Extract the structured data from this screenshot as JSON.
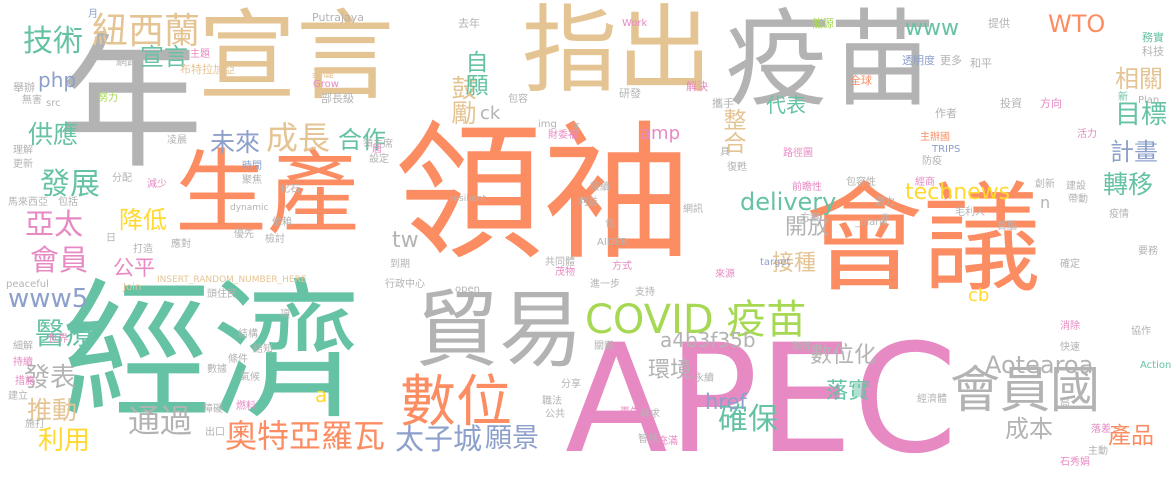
{
  "palette": {
    "teal": "#66c2a5",
    "orange": "#fc8d62",
    "pink": "#e78ac3",
    "lime": "#a6d854",
    "yellow": "#ffd92f",
    "tan": "#e5c494",
    "gray": "#b3b3b3",
    "blue": "#8da0cb"
  },
  "words": [
    {
      "text": "領袖",
      "color": "#fc8d62"
    },
    {
      "text": "經濟",
      "color": "#66c2a5"
    },
    {
      "text": "會議",
      "color": "#fc8d62"
    },
    {
      "text": "APEC",
      "color": "#e78ac3"
    },
    {
      "text": "疫苗",
      "color": "#b3b3b3"
    },
    {
      "text": "宣言",
      "color": "#e5c494"
    },
    {
      "text": "指出",
      "color": "#e5c494"
    },
    {
      "text": "年",
      "color": "#b3b3b3"
    },
    {
      "text": "生產",
      "color": "#fc8d62"
    },
    {
      "text": "貿易",
      "color": "#b3b3b3"
    },
    {
      "text": "數位",
      "color": "#fc8d62"
    },
    {
      "text": "會員國",
      "color": "#b3b3b3"
    },
    {
      "text": "COVID 疫苗",
      "color": "#a6d854"
    },
    {
      "text": "紐西蘭",
      "color": "#e5c494"
    },
    {
      "text": "技術",
      "color": "#66c2a5"
    },
    {
      "text": "成長",
      "color": "#e5c494"
    },
    {
      "text": "發展",
      "color": "#66c2a5"
    },
    {
      "text": "亞太",
      "color": "#e78ac3"
    },
    {
      "text": "會員",
      "color": "#e78ac3"
    },
    {
      "text": "www5",
      "color": "#8da0cb"
    },
    {
      "text": "醫療",
      "color": "#66c2a5"
    },
    {
      "text": "利用",
      "color": "#ffd92f"
    },
    {
      "text": "推動",
      "color": "#e5c494"
    },
    {
      "text": "發表",
      "color": "#b3b3b3"
    },
    {
      "text": "通過",
      "color": "#b3b3b3"
    },
    {
      "text": "奧特亞羅瓦",
      "color": "#fc8d62"
    },
    {
      "text": "太子城",
      "color": "#8da0cb"
    },
    {
      "text": "願景",
      "color": "#8da0cb"
    },
    {
      "text": "宣言",
      "color": "#66c2a5"
    },
    {
      "text": "未來",
      "color": "#8da0cb"
    },
    {
      "text": "合作",
      "color": "#66c2a5"
    },
    {
      "text": "鼓勵",
      "color": "#e5c494"
    },
    {
      "text": "自願",
      "color": "#66c2a5"
    },
    {
      "text": "www",
      "color": "#66c2a5"
    },
    {
      "text": "WTO",
      "color": "#fc8d62"
    },
    {
      "text": "相關",
      "color": "#e5c494"
    },
    {
      "text": "目標",
      "color": "#66c2a5"
    },
    {
      "text": "計畫",
      "color": "#8da0cb"
    },
    {
      "text": "轉移",
      "color": "#66c2a5"
    },
    {
      "text": "technews",
      "color": "#ffd92f"
    },
    {
      "text": "delivery",
      "color": "#66c2a5"
    },
    {
      "text": "開放",
      "color": "#b3b3b3"
    },
    {
      "text": "接種",
      "color": "#e5c494"
    },
    {
      "text": "整合",
      "color": "#e5c494"
    },
    {
      "text": "代表",
      "color": "#66c2a5"
    },
    {
      "text": "數位化",
      "color": "#b3b3b3"
    },
    {
      "text": "落實",
      "color": "#66c2a5"
    },
    {
      "text": "確保",
      "color": "#66c2a5"
    },
    {
      "text": "環境",
      "color": "#b3b3b3"
    },
    {
      "text": "a4b3f35b",
      "color": "#b3b3b3"
    },
    {
      "text": "Aotearoa",
      "color": "#b3b3b3"
    },
    {
      "text": "成本",
      "color": "#b3b3b3"
    },
    {
      "text": "產品",
      "color": "#fc8d62"
    },
    {
      "text": "供應",
      "color": "#66c2a5"
    },
    {
      "text": "降低",
      "color": "#ffd92f"
    },
    {
      "text": "公平",
      "color": "#e78ac3"
    },
    {
      "text": "tw",
      "color": "#b3b3b3"
    },
    {
      "text": "href",
      "color": "#8da0cb"
    },
    {
      "text": "php",
      "color": "#8da0cb"
    },
    {
      "text": "ck",
      "color": "#b3b3b3"
    },
    {
      "text": "amp",
      "color": "#e78ac3"
    },
    {
      "text": "cb",
      "color": "#ffd92f"
    },
    {
      "text": "a",
      "color": "#ffd92f"
    },
    {
      "text": "n",
      "color": "#b3b3b3"
    },
    {
      "text": "能源",
      "color": "#a6d854"
    },
    {
      "text": "提供",
      "color": "#b3b3b3"
    },
    {
      "text": "務實",
      "color": "#66c2a5"
    },
    {
      "text": "科技",
      "color": "#b3b3b3"
    },
    {
      "text": "Putrajaya",
      "color": "#b3b3b3"
    },
    {
      "text": "去年",
      "color": "#b3b3b3"
    },
    {
      "text": "Work",
      "color": "#e78ac3"
    },
    {
      "text": "Grow",
      "color": "#e78ac3"
    },
    {
      "text": "INSERT_RANDOM_NUMBER_HERE",
      "color": "#e5c494"
    },
    {
      "text": "resilient",
      "color": "#b3b3b3"
    },
    {
      "text": "dynamic",
      "color": "#b3b3b3"
    },
    {
      "text": "_blank",
      "color": "#b3b3b3"
    },
    {
      "text": "target",
      "color": "#8da0cb"
    },
    {
      "text": "peaceful",
      "color": "#b3b3b3"
    },
    {
      "text": "Join",
      "color": "#e5c494"
    },
    {
      "text": "AIDER",
      "color": "#b3b3b3"
    },
    {
      "text": "Action",
      "color": "#66c2a5"
    },
    {
      "text": "TRIPS",
      "color": "#8da0cb"
    },
    {
      "text": "Plan",
      "color": "#b3b3b3"
    },
    {
      "text": "open",
      "color": "#b3b3b3"
    },
    {
      "text": "src",
      "color": "#b3b3b3"
    },
    {
      "text": "img",
      "color": "#b3b3b3"
    },
    {
      "text": "布特拉加亞",
      "color": "#e5c494"
    },
    {
      "text": "透明度",
      "color": "#8da0cb"
    },
    {
      "text": "更多",
      "color": "#b3b3b3"
    },
    {
      "text": "和平",
      "color": "#b3b3b3"
    },
    {
      "text": "網路",
      "color": "#b3b3b3"
    },
    {
      "text": "主題",
      "color": "#e78ac3"
    },
    {
      "text": "舉辦",
      "color": "#b3b3b3"
    },
    {
      "text": "無害",
      "color": "#b3b3b3"
    },
    {
      "text": "努力",
      "color": "#a6d854"
    },
    {
      "text": "基礎",
      "color": "#e5c494"
    },
    {
      "text": "部長級",
      "color": "#b3b3b3"
    },
    {
      "text": "包容",
      "color": "#b3b3b3"
    },
    {
      "text": "研發",
      "color": "#b3b3b3"
    },
    {
      "text": "解決",
      "color": "#e78ac3"
    },
    {
      "text": "攜手",
      "color": "#b3b3b3"
    },
    {
      "text": "全球",
      "color": "#fc8d62"
    },
    {
      "text": "作者",
      "color": "#b3b3b3"
    },
    {
      "text": "投資",
      "color": "#b3b3b3"
    },
    {
      "text": "方向",
      "color": "#e78ac3"
    },
    {
      "text": "新",
      "color": "#66c2a5"
    },
    {
      "text": "主辦國",
      "color": "#fc8d62"
    },
    {
      "text": "防疫",
      "color": "#b3b3b3"
    },
    {
      "text": "經商",
      "color": "#e78ac3"
    },
    {
      "text": "活力",
      "color": "#e78ac3"
    },
    {
      "text": "理解",
      "color": "#b3b3b3"
    },
    {
      "text": "更新",
      "color": "#b3b3b3"
    },
    {
      "text": "分配",
      "color": "#b3b3b3"
    },
    {
      "text": "時間",
      "color": "#8da0cb"
    },
    {
      "text": "聚焦",
      "color": "#b3b3b3"
    },
    {
      "text": "減少",
      "color": "#e78ac3"
    },
    {
      "text": "馬來西亞",
      "color": "#b3b3b3"
    },
    {
      "text": "包括",
      "color": "#b3b3b3"
    },
    {
      "text": "化石",
      "color": "#b3b3b3"
    },
    {
      "text": "依賴",
      "color": "#b3b3b3"
    },
    {
      "text": "打造",
      "color": "#b3b3b3"
    },
    {
      "text": "應對",
      "color": "#b3b3b3"
    },
    {
      "text": "優先",
      "color": "#b3b3b3"
    },
    {
      "text": "檢討",
      "color": "#b3b3b3"
    },
    {
      "text": "到期",
      "color": "#b3b3b3"
    },
    {
      "text": "共同體",
      "color": "#b3b3b3"
    },
    {
      "text": "方式",
      "color": "#e78ac3"
    },
    {
      "text": "茂物",
      "color": "#e78ac3"
    },
    {
      "text": "進一步",
      "color": "#b3b3b3"
    },
    {
      "text": "來源",
      "color": "#e78ac3"
    },
    {
      "text": "網訊",
      "color": "#b3b3b3"
    },
    {
      "text": "接續",
      "color": "#b3b3b3"
    },
    {
      "text": "利益",
      "color": "#b3b3b3"
    },
    {
      "text": "行政中心",
      "color": "#b3b3b3"
    },
    {
      "text": "支持",
      "color": "#b3b3b3"
    },
    {
      "text": "關鍵",
      "color": "#b3b3b3"
    },
    {
      "text": "分享",
      "color": "#b3b3b3"
    },
    {
      "text": "公共",
      "color": "#b3b3b3"
    },
    {
      "text": "再生",
      "color": "#e78ac3"
    },
    {
      "text": "尋求",
      "color": "#b3b3b3"
    },
    {
      "text": "智慧",
      "color": "#b3b3b3"
    },
    {
      "text": "充滿",
      "color": "#e78ac3"
    },
    {
      "text": "永續",
      "color": "#b3b3b3"
    },
    {
      "text": "韌性",
      "color": "#b3b3b3"
    },
    {
      "text": "協作",
      "color": "#b3b3b3"
    },
    {
      "text": "消除",
      "color": "#e78ac3"
    },
    {
      "text": "落差",
      "color": "#e78ac3"
    },
    {
      "text": "主動",
      "color": "#b3b3b3"
    },
    {
      "text": "石秀娟",
      "color": "#e78ac3"
    },
    {
      "text": "毛利人",
      "color": "#b3b3b3"
    },
    {
      "text": "首腦",
      "color": "#b3b3b3"
    },
    {
      "text": "確定",
      "color": "#b3b3b3"
    },
    {
      "text": "要務",
      "color": "#b3b3b3"
    },
    {
      "text": "疫情",
      "color": "#b3b3b3"
    },
    {
      "text": "帶動",
      "color": "#b3b3b3"
    },
    {
      "text": "建設",
      "color": "#b3b3b3"
    },
    {
      "text": "創新",
      "color": "#b3b3b3"
    },
    {
      "text": "潛力",
      "color": "#b3b3b3"
    },
    {
      "text": "方案",
      "color": "#b3b3b3"
    },
    {
      "text": "前瞻性",
      "color": "#e78ac3"
    },
    {
      "text": "包容性",
      "color": "#b3b3b3"
    },
    {
      "text": "復甦",
      "color": "#b3b3b3"
    },
    {
      "text": "路徑圖",
      "color": "#e78ac3"
    },
    {
      "text": "具",
      "color": "#b3b3b3"
    },
    {
      "text": "底",
      "color": "#b3b3b3"
    },
    {
      "text": "設定",
      "color": "#b3b3b3"
    },
    {
      "text": "財委福",
      "color": "#e78ac3"
    },
    {
      "text": "領主席",
      "color": "#b3b3b3"
    },
    {
      "text": "凌晨",
      "color": "#b3b3b3"
    },
    {
      "text": "屆",
      "color": "#e78ac3"
    },
    {
      "text": "月",
      "color": "#8da0cb"
    },
    {
      "text": "日",
      "color": "#b3b3b3"
    },
    {
      "text": "頭住民",
      "color": "#b3b3b3"
    },
    {
      "text": "項",
      "color": "#b3b3b3"
    },
    {
      "text": "世界",
      "color": "#e78ac3"
    },
    {
      "text": "細解",
      "color": "#b3b3b3"
    },
    {
      "text": "持續",
      "color": "#e78ac3"
    },
    {
      "text": "措施",
      "color": "#e78ac3"
    },
    {
      "text": "建立",
      "color": "#b3b3b3"
    },
    {
      "text": "施打",
      "color": "#b3b3b3"
    },
    {
      "text": "出口",
      "color": "#b3b3b3"
    },
    {
      "text": "結構",
      "color": "#b3b3b3"
    },
    {
      "text": "燃料",
      "color": "#e78ac3"
    },
    {
      "text": "障礙",
      "color": "#b3b3b3"
    },
    {
      "text": "數據",
      "color": "#b3b3b3"
    },
    {
      "text": "氣候",
      "color": "#b3b3b3"
    },
    {
      "text": "條件",
      "color": "#b3b3b3"
    },
    {
      "text": "結知",
      "color": "#b3b3b3"
    },
    {
      "text": "職法",
      "color": "#b3b3b3"
    },
    {
      "text": "經濟體",
      "color": "#b3b3b3"
    },
    {
      "text": "局",
      "color": "#b3b3b3"
    },
    {
      "text": "快速",
      "color": "#b3b3b3"
    },
    {
      "text": "非",
      "color": "#b3b3b3"
    },
    {
      "text": "包",
      "color": "#b3b3b3"
    }
  ]
}
